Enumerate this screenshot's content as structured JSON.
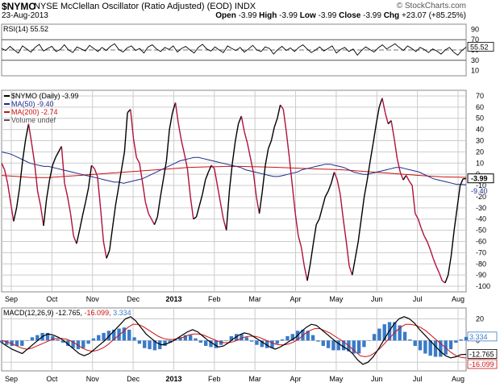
{
  "header": {
    "symbol": "$NYMO",
    "name": "NYSE McClellan Oscillator (Ratio Adjusted) (EOD)",
    "exchange": "INDX",
    "date": "23-Aug-2013",
    "watermark": "© StockCharts.com",
    "open_label": "Open",
    "open": "-3.99",
    "high_label": "High",
    "high": "-3.99",
    "low_label": "Low",
    "low": "-3.99",
    "close_label": "Close",
    "close": "-3.99",
    "chg_label": "Chg",
    "chg": "+23.07 (+85.25%)"
  },
  "colors": {
    "price": "#000000",
    "ma50": "#1a2b8c",
    "ma200": "#cc1111",
    "macd": "#000000",
    "signal": "#cc1111",
    "hist": "#3a7ac8",
    "grid": "#cccccc",
    "down": "#b0103a"
  },
  "chart_data": [
    {
      "type": "line",
      "panel": "RSI",
      "legend": "RSI(14) 55.52",
      "value_label": "55.52",
      "yticks": [
        90,
        70,
        50,
        30,
        10
      ],
      "ylim": [
        0,
        100
      ],
      "reference_lines": [
        70,
        50,
        30
      ],
      "values": [
        53,
        49,
        57,
        50,
        44,
        58,
        52,
        46,
        55,
        61,
        48,
        53,
        57,
        47,
        51,
        60,
        50,
        45,
        56,
        52,
        48,
        59,
        53,
        47,
        55,
        49,
        57,
        62,
        51,
        46,
        54,
        58,
        49,
        53,
        44,
        56,
        60,
        52,
        47,
        55,
        51,
        58,
        46,
        53,
        57,
        50,
        44,
        55,
        61,
        52,
        48,
        56,
        50,
        45,
        58,
        53,
        49,
        55,
        46,
        52,
        59,
        50,
        47,
        56,
        53,
        42,
        51,
        57,
        49,
        54,
        47,
        55,
        60,
        52,
        45,
        50,
        56,
        48,
        53,
        58,
        44,
        51,
        55,
        47,
        52,
        40,
        49,
        56,
        51,
        46,
        54,
        60,
        52,
        57,
        62,
        55,
        49,
        58,
        53,
        47,
        55,
        51,
        45,
        52,
        48,
        42,
        50,
        55,
        46,
        40,
        49,
        55.52
      ]
    },
    {
      "type": "line",
      "panel": "price",
      "legend": [
        "$NYMO (Daily) -3.99",
        "MA(50) -9.40",
        "MA(200) -2.74",
        "Volume undef"
      ],
      "xlabels": [
        "Sep",
        "Oct",
        "Nov",
        "Dec",
        "2013",
        "Feb",
        "Mar",
        "Apr",
        "May",
        "Jun",
        "Jul",
        "Aug"
      ],
      "yticks": [
        70,
        60,
        50,
        40,
        30,
        20,
        10,
        0,
        -10,
        -20,
        -30,
        -40,
        -50,
        -60,
        -70,
        -80,
        -90,
        -100
      ],
      "ylim": [
        -105,
        75
      ],
      "last_value_label": "-3.99",
      "ma50_label": "-9.40",
      "series": [
        {
          "name": "$NYMO",
          "values": [
            10,
            4,
            -8,
            -25,
            -42,
            -30,
            -12,
            12,
            31,
            45,
            28,
            10,
            -15,
            -28,
            -46,
            -22,
            -5,
            8,
            15,
            20,
            25,
            -8,
            -20,
            -35,
            -55,
            -62,
            -50,
            -37,
            -25,
            -12,
            8,
            5,
            -2,
            -30,
            -60,
            -75,
            -68,
            -48,
            -28,
            -12,
            4,
            20,
            55,
            58,
            32,
            15,
            10,
            -7,
            -25,
            -35,
            -40,
            -45,
            -38,
            -20,
            -4,
            12,
            40,
            55,
            64,
            45,
            30,
            18,
            5,
            -20,
            -40,
            -38,
            -28,
            -18,
            -5,
            2,
            8,
            5,
            -10,
            -25,
            -40,
            -50,
            -15,
            10,
            30,
            45,
            52,
            38,
            28,
            15,
            2,
            -20,
            -35,
            -15,
            8,
            23,
            30,
            42,
            50,
            62,
            58,
            38,
            15,
            -10,
            -35,
            -55,
            -65,
            -82,
            -95,
            -80,
            -62,
            -45,
            -40,
            -30,
            -20,
            -15,
            -8,
            2,
            -5,
            -18,
            -40,
            -60,
            -82,
            -90,
            -75,
            -60,
            -40,
            -20,
            -5,
            12,
            28,
            45,
            60,
            68,
            55,
            45,
            48,
            32,
            14,
            2,
            -5,
            -1,
            -6,
            -10,
            -35,
            -40,
            -48,
            -55,
            -60,
            -67,
            -75,
            -82,
            -88,
            -95,
            -97,
            -90,
            -73,
            -50,
            -30,
            -10,
            -4,
            -3.99
          ]
        },
        {
          "name": "MA(50)",
          "values": [
            20,
            19,
            18,
            16,
            14,
            12,
            10,
            9,
            8,
            7,
            7,
            6,
            5,
            4,
            3,
            2,
            1,
            0,
            -1,
            -2,
            -3,
            -4,
            -5,
            -6,
            -7,
            -7,
            -8,
            -7,
            -6,
            -5,
            -4,
            -2,
            0,
            2,
            4,
            6,
            8,
            10,
            12,
            13,
            14,
            15,
            15,
            14,
            13,
            12,
            11,
            10,
            9,
            8,
            7,
            6,
            4,
            3,
            2,
            1,
            0,
            -1,
            -2,
            -2,
            -1,
            0,
            1,
            2,
            4,
            5,
            6,
            7,
            8,
            9,
            9,
            8,
            7,
            6,
            4,
            2,
            1,
            0,
            0,
            1,
            2,
            3,
            4,
            5,
            6,
            6,
            5,
            4,
            3,
            2,
            0,
            -2,
            -4,
            -5,
            -6,
            -7,
            -8,
            -9,
            -9,
            -9.4
          ]
        },
        {
          "name": "MA(200)",
          "values": [
            -1,
            -1.5,
            -2,
            -2.5,
            -3,
            -3,
            -3,
            -2.5,
            -2,
            -1.5,
            -1,
            -0.5,
            0,
            0.5,
            1,
            1.5,
            2,
            2.5,
            3,
            3.5,
            4,
            4.5,
            5,
            5.5,
            6,
            6.3,
            6.5,
            6.7,
            6.8,
            7,
            7,
            7,
            6.8,
            6.7,
            6.5,
            6.3,
            6,
            5.8,
            5.5,
            5.2,
            5,
            4.7,
            4.5,
            4.2,
            4,
            3.5,
            3,
            2.5,
            2,
            1.5,
            1,
            0.5,
            0,
            -0.5,
            -1,
            -1.5,
            -2,
            -2.3,
            -2.5,
            -2.6,
            -2.74
          ]
        }
      ]
    },
    {
      "type": "line",
      "panel": "MACD",
      "legend": "MACD(12,26,9) -12.765, -16.099, 3.334",
      "legend_parts": [
        "MACD(12,26,9) -12.765,",
        "-16.099,",
        "3.334"
      ],
      "xlabels": [
        "Sep",
        "Oct",
        "Nov",
        "Dec",
        "2013",
        "Feb",
        "Mar",
        "Apr",
        "May",
        "Jun",
        "Jul",
        "Aug"
      ],
      "yticks": [
        20,
        0,
        -20
      ],
      "ylim": [
        -28,
        30
      ],
      "value_labels": [
        "3.334",
        "-12.765",
        "-16.099"
      ],
      "series": [
        {
          "name": "MACD",
          "values": [
            -2,
            -5,
            -8,
            -10,
            -12,
            -8,
            -4,
            0,
            4,
            6,
            5,
            3,
            0,
            -4,
            -8,
            -12,
            -14,
            -12,
            -8,
            -4,
            0,
            5,
            10,
            15,
            20,
            22,
            18,
            12,
            6,
            2,
            -2,
            -4,
            -3,
            -1,
            2,
            5,
            8,
            10,
            8,
            4,
            0,
            -3,
            -6,
            -5,
            -2,
            2,
            5,
            7,
            6,
            3,
            0,
            -3,
            -6,
            -8,
            -6,
            -3,
            0,
            3,
            8,
            12,
            15,
            14,
            10,
            6,
            2,
            -2,
            -5,
            -8,
            -12,
            -18,
            -22,
            -20,
            -15,
            -8,
            0,
            8,
            15,
            20,
            22,
            20,
            16,
            10,
            5,
            0,
            -5,
            -10,
            -14,
            -16,
            -15,
            -13,
            -12.765
          ]
        },
        {
          "name": "Signal",
          "values": [
            0,
            -1,
            -3,
            -5,
            -7,
            -8,
            -7,
            -5,
            -3,
            -1,
            1,
            2,
            2,
            1,
            -1,
            -4,
            -7,
            -9,
            -10,
            -9,
            -7,
            -4,
            0,
            4,
            8,
            12,
            15,
            15,
            13,
            10,
            7,
            4,
            2,
            1,
            1,
            2,
            3,
            5,
            6,
            6,
            5,
            3,
            1,
            -1,
            -2,
            -2,
            -1,
            1,
            3,
            4,
            4,
            3,
            1,
            -1,
            -3,
            -4,
            -4,
            -3,
            -1,
            2,
            6,
            9,
            11,
            11,
            9,
            7,
            4,
            1,
            -2,
            -6,
            -10,
            -14,
            -15,
            -14,
            -11,
            -7,
            -2,
            3,
            8,
            12,
            15,
            15,
            14,
            12,
            9,
            5,
            1,
            -3,
            -7,
            -11,
            -14,
            -15.5,
            -16.099
          ]
        },
        {
          "name": "Histogram",
          "values": [
            -2,
            -4,
            -5,
            -5,
            -5,
            0,
            3,
            5,
            7,
            7,
            4,
            1,
            -2,
            -5,
            -7,
            -8,
            -7,
            -3,
            2,
            5,
            7,
            9,
            10,
            11,
            12,
            10,
            3,
            -3,
            -7,
            -8,
            -9,
            -8,
            -5,
            -2,
            1,
            3,
            5,
            5,
            2,
            -2,
            -5,
            -6,
            -7,
            -4,
            0,
            4,
            6,
            6,
            3,
            -1,
            -4,
            -6,
            -7,
            -7,
            -3,
            1,
            4,
            6,
            9,
            10,
            9,
            5,
            -1,
            -5,
            -7,
            -9,
            -9,
            -9,
            -10,
            -12,
            -12,
            -6,
            0,
            6,
            11,
            15,
            17,
            17,
            14,
            8,
            1,
            -5,
            -9,
            -12,
            -14,
            -15,
            -15,
            -13,
            -8,
            -2,
            1,
            3.334
          ]
        }
      ]
    }
  ]
}
